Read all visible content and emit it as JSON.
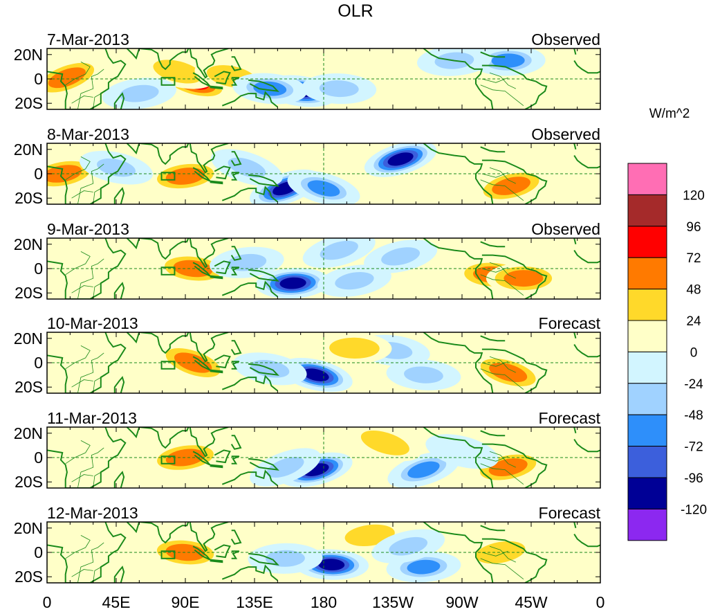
{
  "chart_data": {
    "type": "heatmap",
    "title": "OLR",
    "colorbar": {
      "units": "W/m^2",
      "levels": [
        "120",
        "96",
        "72",
        "48",
        "24",
        "0",
        "-24",
        "-48",
        "-72",
        "-96",
        "-120"
      ],
      "colors": [
        "#ff6eb4",
        "#a52a2a",
        "#ff0000",
        "#ff7a00",
        "#ffd92a",
        "#ffffc8",
        "#d2f5ff",
        "#a0d2ff",
        "#2e8ffa",
        "#3c5fdc",
        "#000096",
        "#8c28f0"
      ]
    },
    "x_ticks": [
      "0",
      "45E",
      "90E",
      "135E",
      "180",
      "135W",
      "90W",
      "45W",
      "0"
    ],
    "y_ticks": [
      "20N",
      "0",
      "20S"
    ],
    "panels": [
      {
        "date": "7-Mar-2013",
        "label": "Observed",
        "anomalies": [
          {
            "lon": 13,
            "lat": 1,
            "value": 60
          },
          {
            "lon": 95,
            "lat": -2,
            "value": 90
          },
          {
            "lon": 85,
            "lat": 6,
            "value": 45
          },
          {
            "lon": 120,
            "lat": 2,
            "value": 40
          },
          {
            "lon": 165,
            "lat": -10,
            "value": -120
          },
          {
            "lon": 145,
            "lat": -8,
            "value": -90
          },
          {
            "lon": 190,
            "lat": -8,
            "value": -70
          },
          {
            "lon": 300,
            "lat": 15,
            "value": -80
          },
          {
            "lon": 265,
            "lat": 15,
            "value": -60
          },
          {
            "lon": 60,
            "lat": -12,
            "value": -60
          }
        ]
      },
      {
        "date": "8-Mar-2013",
        "label": "Observed",
        "anomalies": [
          {
            "lon": 90,
            "lat": -2,
            "value": 70
          },
          {
            "lon": 10,
            "lat": 0,
            "value": 50
          },
          {
            "lon": 302,
            "lat": -10,
            "value": 60
          },
          {
            "lon": 230,
            "lat": 12,
            "value": -120
          },
          {
            "lon": 155,
            "lat": -12,
            "value": -120
          },
          {
            "lon": 130,
            "lat": 5,
            "value": -70
          },
          {
            "lon": 180,
            "lat": -12,
            "value": -80
          },
          {
            "lon": 45,
            "lat": 5,
            "value": -50
          }
        ]
      },
      {
        "date": "9-Mar-2013",
        "label": "Observed",
        "anomalies": [
          {
            "lon": 95,
            "lat": 0,
            "value": 70
          },
          {
            "lon": 290,
            "lat": -5,
            "value": 60
          },
          {
            "lon": 310,
            "lat": -8,
            "value": 70
          },
          {
            "lon": 160,
            "lat": -12,
            "value": -120
          },
          {
            "lon": 130,
            "lat": 5,
            "value": -60
          },
          {
            "lon": 200,
            "lat": -10,
            "value": -70
          },
          {
            "lon": 230,
            "lat": 10,
            "value": -60
          },
          {
            "lon": 190,
            "lat": 15,
            "value": -50
          }
        ]
      },
      {
        "date": "10-Mar-2013",
        "label": "Forecast",
        "anomalies": [
          {
            "lon": 95,
            "lat": 0,
            "value": 60
          },
          {
            "lon": 300,
            "lat": -8,
            "value": 50
          },
          {
            "lon": 175,
            "lat": -10,
            "value": -120
          },
          {
            "lon": 145,
            "lat": -5,
            "value": -70
          },
          {
            "lon": 225,
            "lat": 10,
            "value": -60
          },
          {
            "lon": 245,
            "lat": -10,
            "value": -60
          },
          {
            "lon": 200,
            "lat": 12,
            "value": 30
          }
        ]
      },
      {
        "date": "11-Mar-2013",
        "label": "Forecast",
        "anomalies": [
          {
            "lon": 90,
            "lat": 0,
            "value": 65
          },
          {
            "lon": 300,
            "lat": -8,
            "value": 55
          },
          {
            "lon": 175,
            "lat": -10,
            "value": -120
          },
          {
            "lon": 245,
            "lat": -10,
            "value": -90
          },
          {
            "lon": 155,
            "lat": -8,
            "value": -70
          },
          {
            "lon": 220,
            "lat": 12,
            "value": 40
          },
          {
            "lon": 270,
            "lat": 5,
            "value": -40
          }
        ]
      },
      {
        "date": "12-Mar-2013",
        "label": "Forecast",
        "anomalies": [
          {
            "lon": 90,
            "lat": 0,
            "value": 65
          },
          {
            "lon": 185,
            "lat": -10,
            "value": -120
          },
          {
            "lon": 155,
            "lat": -5,
            "value": -70
          },
          {
            "lon": 245,
            "lat": -12,
            "value": -80
          },
          {
            "lon": 210,
            "lat": 14,
            "value": 40
          },
          {
            "lon": 295,
            "lat": 0,
            "value": 35
          },
          {
            "lon": 235,
            "lat": 5,
            "value": -50
          }
        ]
      }
    ]
  }
}
